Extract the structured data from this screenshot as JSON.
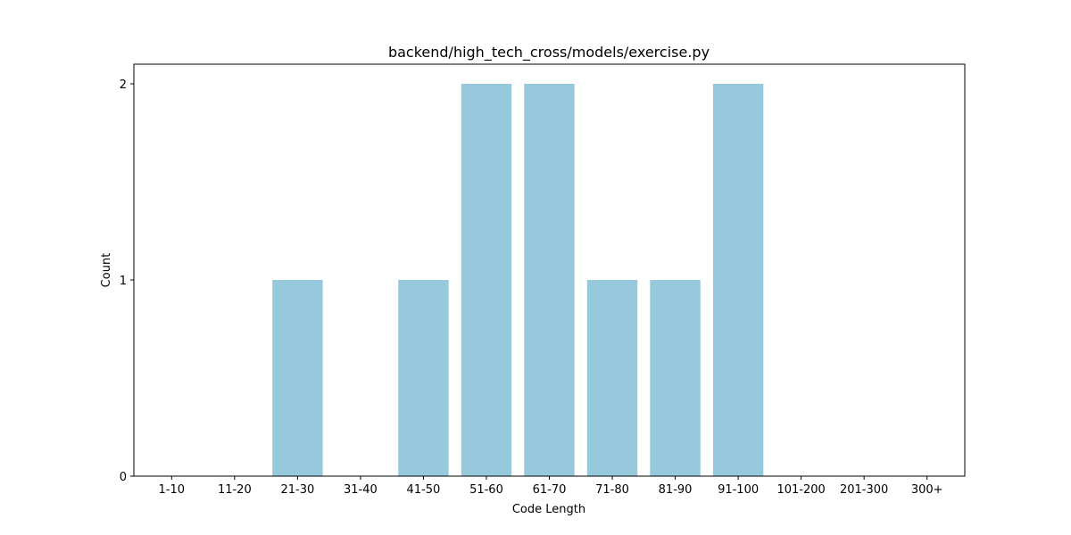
{
  "chart_data": {
    "type": "bar",
    "title": "backend/high_tech_cross/models/exercise.py",
    "xlabel": "Code Length",
    "ylabel": "Count",
    "categories": [
      "1-10",
      "11-20",
      "21-30",
      "31-40",
      "41-50",
      "51-60",
      "61-70",
      "71-80",
      "81-90",
      "91-100",
      "101-200",
      "201-300",
      "300+"
    ],
    "values": [
      0,
      0,
      1,
      0,
      1,
      2,
      2,
      1,
      1,
      2,
      0,
      0,
      0
    ],
    "yticks": [
      "0",
      "1",
      "2"
    ],
    "ylim": [
      0,
      2.1
    ],
    "grid": false,
    "legend": "none",
    "bar_color": "#96c9dc"
  }
}
